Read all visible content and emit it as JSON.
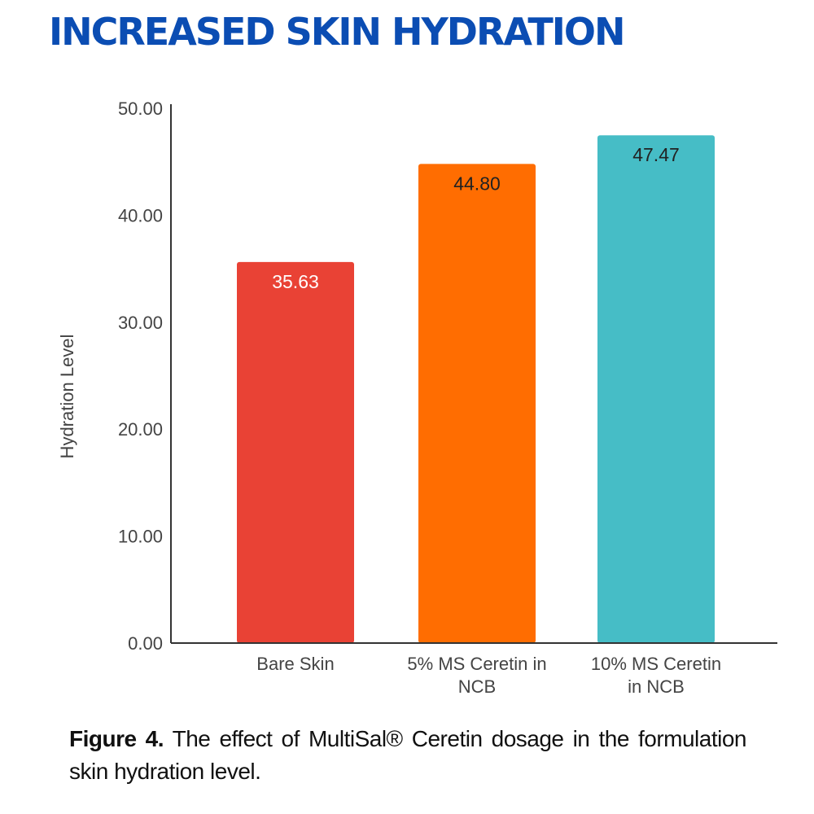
{
  "chart_data": {
    "type": "bar",
    "title": "INCREASED SKIN HYDRATION",
    "xlabel": "",
    "ylabel": "Hydration Level",
    "ylim": [
      0,
      50
    ],
    "yticks": [
      "0.00",
      "10.00",
      "20.00",
      "30.00",
      "40.00",
      "50.00"
    ],
    "categories": [
      [
        "Bare Skin"
      ],
      [
        "5% MS Ceretin in",
        "NCB"
      ],
      [
        "10% MS Ceretin",
        "in NCB"
      ]
    ],
    "values": [
      35.63,
      44.8,
      47.47
    ],
    "data_labels": [
      "35.63",
      "44.80",
      "47.47"
    ],
    "colors": [
      "#e94235",
      "#ff6d01",
      "#46bdc6"
    ],
    "label_colors": [
      "#ffffff",
      "#222222",
      "#222222"
    ],
    "grid": false,
    "legend": "none"
  },
  "caption": {
    "label": "Figure 4.",
    "text": " The effect of MultiSal® Ceretin dosage in the formulation skin hydration level."
  }
}
